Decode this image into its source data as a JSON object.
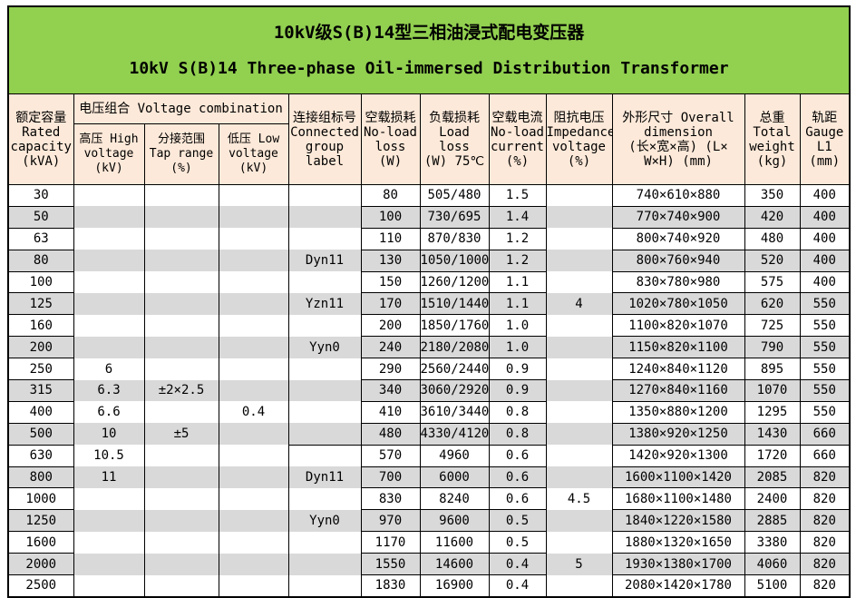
{
  "title": {
    "line1_zh": "10kV级S(B)14型三相油浸式配电变压器",
    "line2_en": "10kV S(B)14 Three-phase Oil-immersed Distribution Transformer"
  },
  "header": {
    "capacity": "额定容量\nRated\ncapacity\n(kVA)",
    "voltage_combination": "电压组合 Voltage combination",
    "high_voltage": "高压 High\nvoltage\n(kV)",
    "tap_range": "分接范围\nTap range\n(%)",
    "low_voltage": "低压 Low\nvoltage\n(kV)",
    "connected_group": "连接组标号\nConnected\ngroup\nlabel",
    "no_load_loss": "空载损耗\nNo-load\nloss\n(W)",
    "load_loss": "负载损耗\nLoad loss\n(W) 75℃",
    "no_load_current": "空载电流\nNo-load\ncurrent\n(%)",
    "impedance_voltage": "阻抗电压\nImpedance\nvoltage\n(%)",
    "dimension": "外形尺寸 Overall\ndimension\n(长×宽×高) (L×\nW×H) (mm)",
    "total_weight": "总重\nTotal\nweight\n(kg)",
    "gauge": "轨距\nGauge\nL1\n(mm)"
  },
  "rows": [
    {
      "capacity": "30",
      "hv": "",
      "tap": "",
      "lv": "",
      "group": "",
      "no_load_loss": "80",
      "load_loss": "505/480",
      "no_load_current": "1.5",
      "impedance": "",
      "dimension": "740×610×880",
      "weight": "350",
      "gauge": "400"
    },
    {
      "capacity": "50",
      "hv": "",
      "tap": "",
      "lv": "",
      "group": "",
      "no_load_loss": "100",
      "load_loss": "730/695",
      "no_load_current": "1.4",
      "impedance": "",
      "dimension": "770×740×900",
      "weight": "420",
      "gauge": "400"
    },
    {
      "capacity": "63",
      "hv": "",
      "tap": "",
      "lv": "",
      "group": "",
      "no_load_loss": "110",
      "load_loss": "870/830",
      "no_load_current": "1.2",
      "impedance": "",
      "dimension": "800×740×920",
      "weight": "480",
      "gauge": "400"
    },
    {
      "capacity": "80",
      "hv": "",
      "tap": "",
      "lv": "",
      "group": "Dyn11",
      "no_load_loss": "130",
      "load_loss": "1050/1000",
      "no_load_current": "1.2",
      "impedance": "",
      "dimension": "800×760×940",
      "weight": "520",
      "gauge": "400"
    },
    {
      "capacity": "100",
      "hv": "",
      "tap": "",
      "lv": "",
      "group": "",
      "no_load_loss": "150",
      "load_loss": "1260/1200",
      "no_load_current": "1.1",
      "impedance": "",
      "dimension": "830×780×980",
      "weight": "575",
      "gauge": "400"
    },
    {
      "capacity": "125",
      "hv": "",
      "tap": "",
      "lv": "",
      "group": "Yzn11",
      "no_load_loss": "170",
      "load_loss": "1510/1440",
      "no_load_current": "1.1",
      "impedance": "4",
      "dimension": "1020×780×1050",
      "weight": "620",
      "gauge": "550"
    },
    {
      "capacity": "160",
      "hv": "",
      "tap": "",
      "lv": "",
      "group": "",
      "no_load_loss": "200",
      "load_loss": "1850/1760",
      "no_load_current": "1.0",
      "impedance": "",
      "dimension": "1100×820×1070",
      "weight": "725",
      "gauge": "550"
    },
    {
      "capacity": "200",
      "hv": "",
      "tap": "",
      "lv": "",
      "group": "Yyn0",
      "no_load_loss": "240",
      "load_loss": "2180/2080",
      "no_load_current": "1.0",
      "impedance": "",
      "dimension": "1150×820×1100",
      "weight": "790",
      "gauge": "550"
    },
    {
      "capacity": "250",
      "hv": "6",
      "tap": "",
      "lv": "",
      "group": "",
      "no_load_loss": "290",
      "load_loss": "2560/2440",
      "no_load_current": "0.9",
      "impedance": "",
      "dimension": "1240×840×1120",
      "weight": "895",
      "gauge": "550"
    },
    {
      "capacity": "315",
      "hv": "6.3",
      "tap": "±2×2.5",
      "lv": "",
      "group": "",
      "no_load_loss": "340",
      "load_loss": "3060/2920",
      "no_load_current": "0.9",
      "impedance": "",
      "dimension": "1270×840×1160",
      "weight": "1070",
      "gauge": "550"
    },
    {
      "capacity": "400",
      "hv": "6.6",
      "tap": "",
      "lv": "0.4",
      "group": "",
      "no_load_loss": "410",
      "load_loss": "3610/3440",
      "no_load_current": "0.8",
      "impedance": "",
      "dimension": "1350×880×1200",
      "weight": "1295",
      "gauge": "550"
    },
    {
      "capacity": "500",
      "hv": "10",
      "tap": "±5",
      "lv": "",
      "group": "",
      "no_load_loss": "480",
      "load_loss": "4330/4120",
      "no_load_current": "0.8",
      "impedance": "",
      "dimension": "1380×920×1250",
      "weight": "1430",
      "gauge": "660"
    },
    {
      "capacity": "630",
      "hv": "10.5",
      "tap": "",
      "lv": "",
      "group": "",
      "no_load_loss": "570",
      "load_loss": "4960",
      "no_load_current": "0.6",
      "impedance": "",
      "dimension": "1420×920×1300",
      "weight": "1720",
      "gauge": "660"
    },
    {
      "capacity": "800",
      "hv": "11",
      "tap": "",
      "lv": "",
      "group": "Dyn11",
      "no_load_loss": "700",
      "load_loss": "6000",
      "no_load_current": "0.6",
      "impedance": "",
      "dimension": "1600×1100×1420",
      "weight": "2085",
      "gauge": "820"
    },
    {
      "capacity": "1000",
      "hv": "",
      "tap": "",
      "lv": "",
      "group": "",
      "no_load_loss": "830",
      "load_loss": "8240",
      "no_load_current": "0.6",
      "impedance": "4.5",
      "dimension": "1680×1100×1480",
      "weight": "2400",
      "gauge": "820"
    },
    {
      "capacity": "1250",
      "hv": "",
      "tap": "",
      "lv": "",
      "group": "Yyn0",
      "no_load_loss": "970",
      "load_loss": "9600",
      "no_load_current": "0.5",
      "impedance": "",
      "dimension": "1840×1220×1580",
      "weight": "2885",
      "gauge": "820"
    },
    {
      "capacity": "1600",
      "hv": "",
      "tap": "",
      "lv": "",
      "group": "",
      "no_load_loss": "1170",
      "load_loss": "11600",
      "no_load_current": "0.5",
      "impedance": "",
      "dimension": "1880×1320×1650",
      "weight": "3380",
      "gauge": "820"
    },
    {
      "capacity": "2000",
      "hv": "",
      "tap": "",
      "lv": "",
      "group": "",
      "no_load_loss": "1550",
      "load_loss": "14600",
      "no_load_current": "0.4",
      "impedance": "5",
      "dimension": "1930×1380×1700",
      "weight": "4060",
      "gauge": "820"
    },
    {
      "capacity": "2500",
      "hv": "",
      "tap": "",
      "lv": "",
      "group": "",
      "no_load_loss": "1830",
      "load_loss": "16900",
      "no_load_current": "0.4",
      "impedance": "",
      "dimension": "2080×1420×1780",
      "weight": "5100",
      "gauge": "820"
    }
  ]
}
